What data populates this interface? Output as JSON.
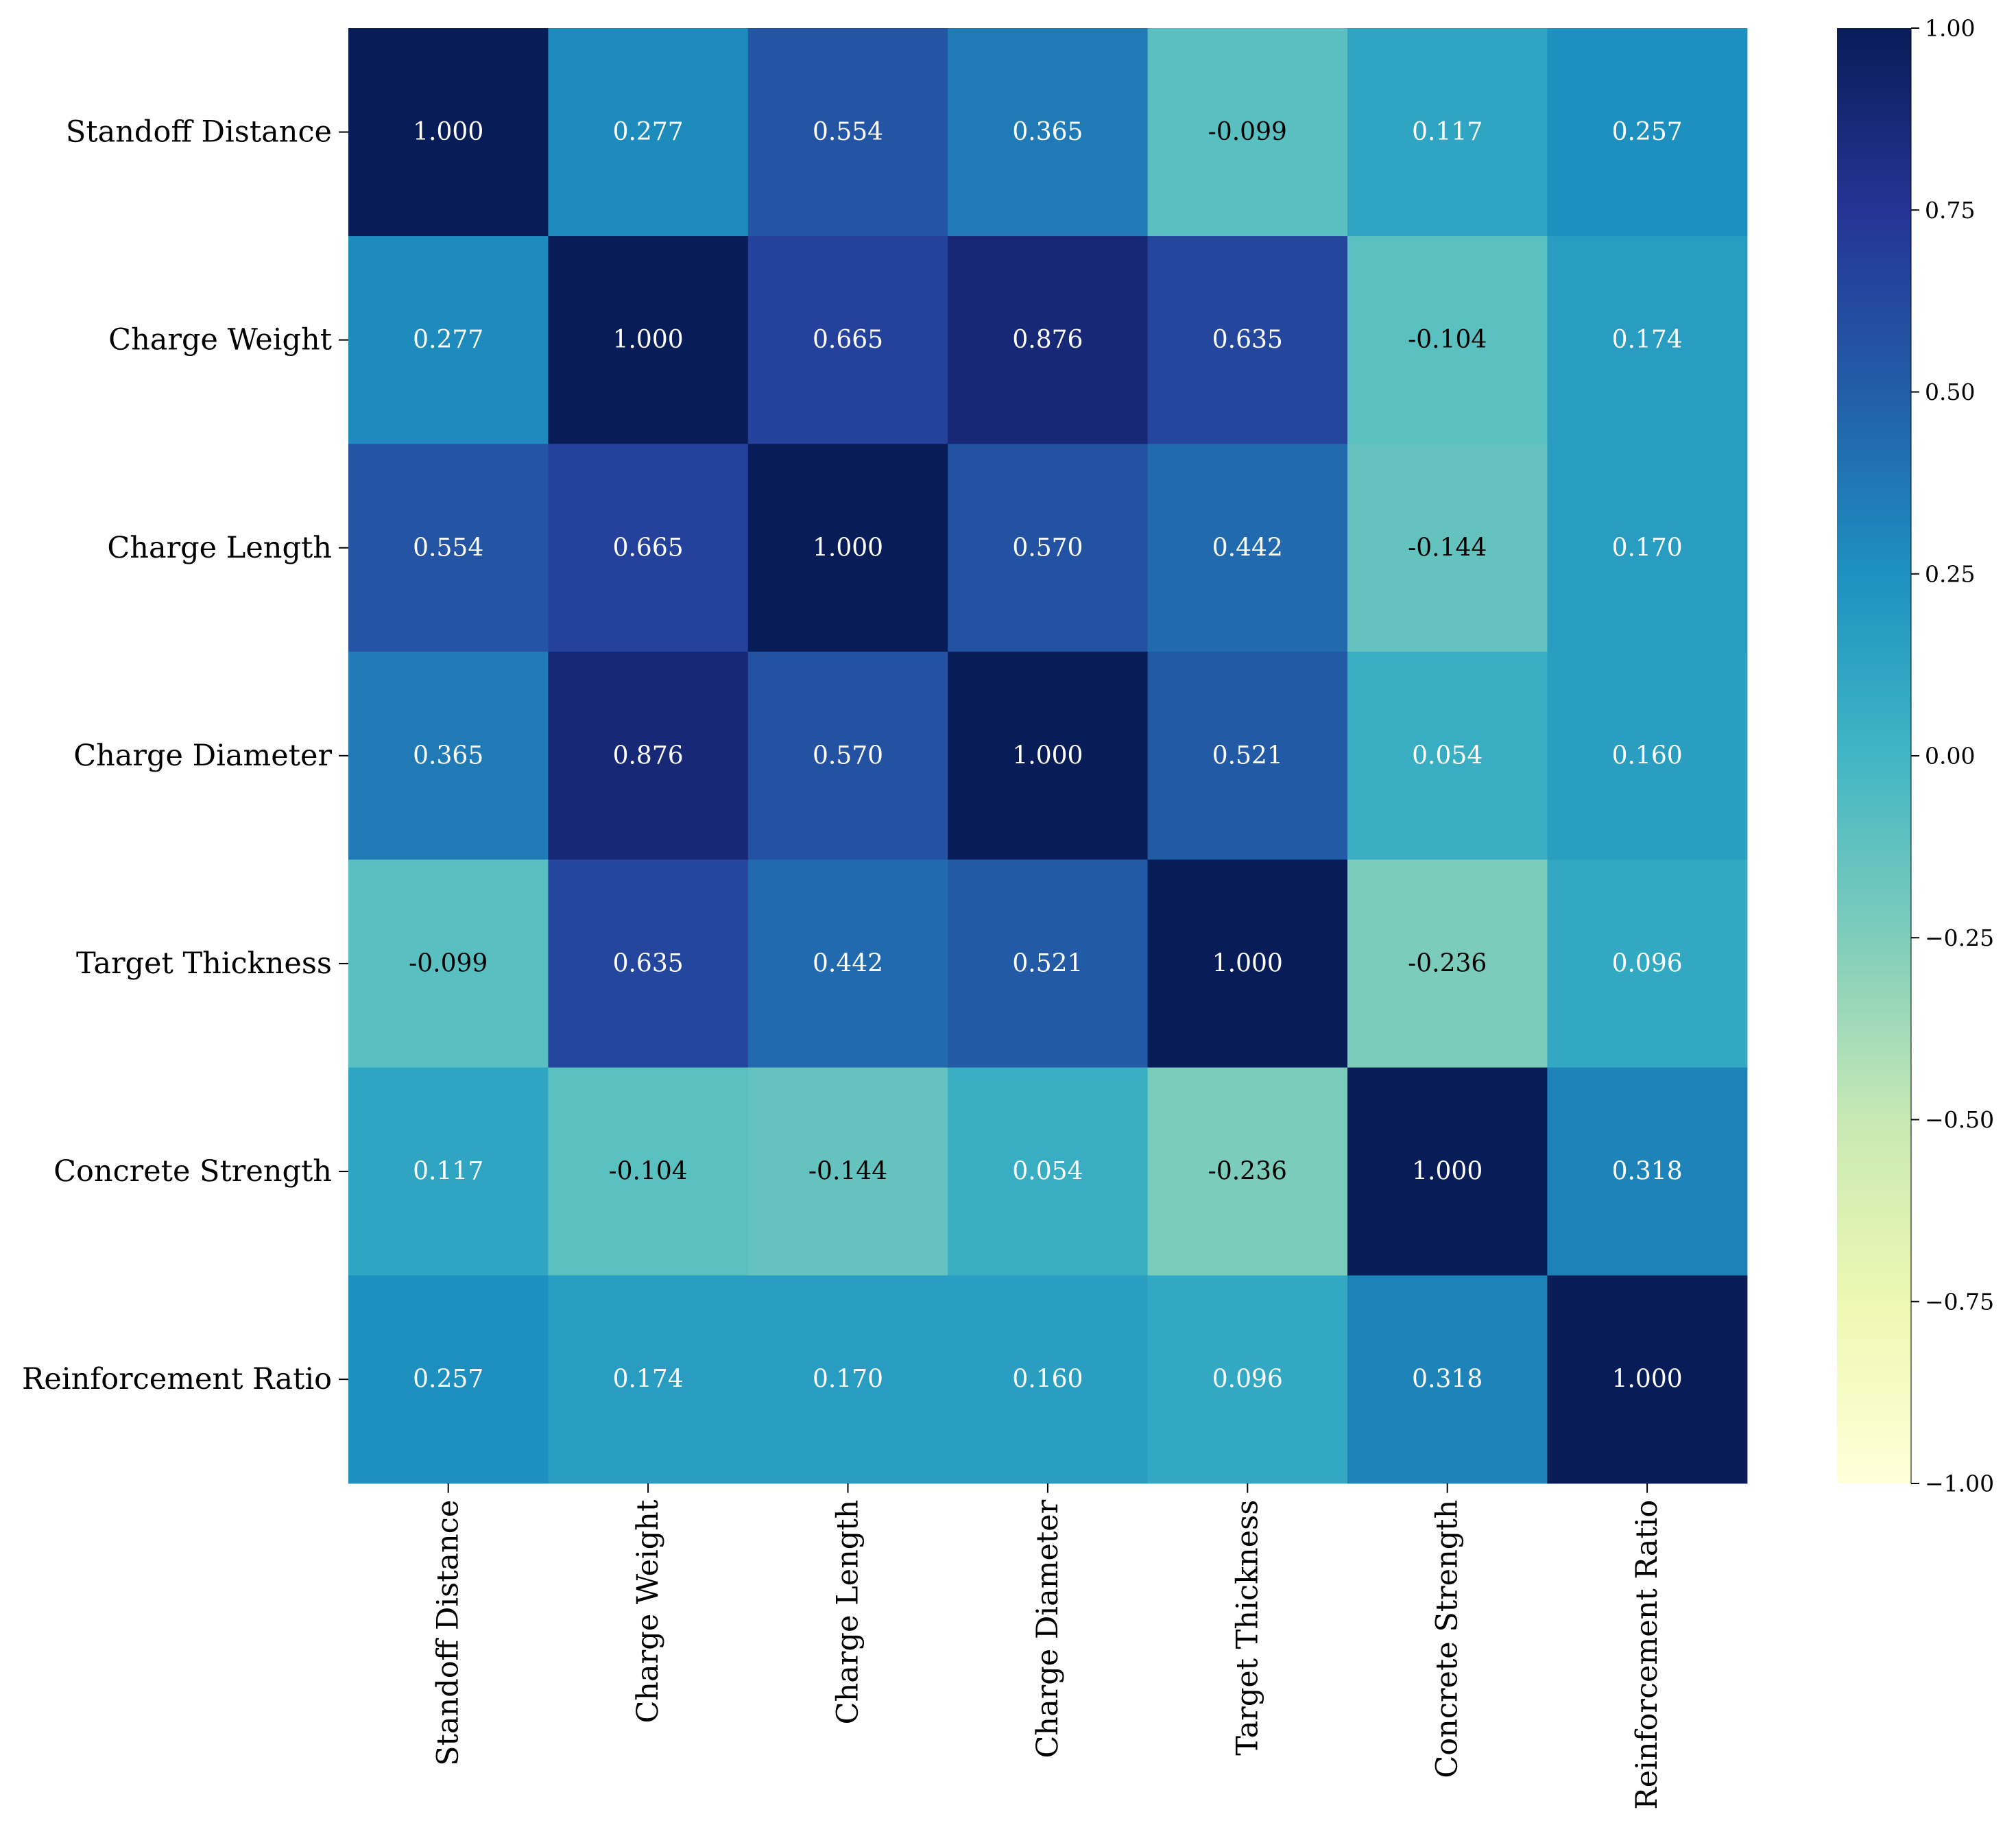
{
  "chart_data": {
    "type": "heatmap",
    "title": "",
    "row_labels": [
      "Standoff Distance",
      "Charge Weight",
      "Charge Length",
      "Charge Diameter",
      "Target Thickness",
      "Concrete Strength",
      "Reinforcement Ratio"
    ],
    "col_labels": [
      "Standoff Distance",
      "Charge Weight",
      "Charge Length",
      "Charge Diameter",
      "Target Thickness",
      "Concrete Strength",
      "Reinforcement Ratio"
    ],
    "values": [
      [
        1.0,
        0.277,
        0.554,
        0.365,
        -0.099,
        0.117,
        0.257
      ],
      [
        0.277,
        1.0,
        0.665,
        0.876,
        0.635,
        -0.104,
        0.174
      ],
      [
        0.554,
        0.665,
        1.0,
        0.57,
        0.442,
        -0.144,
        0.17
      ],
      [
        0.365,
        0.876,
        0.57,
        1.0,
        0.521,
        0.054,
        0.16
      ],
      [
        -0.099,
        0.635,
        0.442,
        0.521,
        1.0,
        -0.236,
        0.096
      ],
      [
        0.117,
        -0.104,
        -0.144,
        0.054,
        -0.236,
        1.0,
        0.318
      ],
      [
        0.257,
        0.174,
        0.17,
        0.16,
        0.096,
        0.318,
        1.0
      ]
    ],
    "value_format": "0.000",
    "colormap": "YlGnBu",
    "vmin": -1.0,
    "vmax": 1.0,
    "colorbar_ticks": [
      1.0,
      0.75,
      0.5,
      0.25,
      0.0,
      -0.25,
      -0.5,
      -0.75,
      -1.0
    ],
    "colorbar_tick_labels": [
      "1.00",
      "0.75",
      "0.50",
      "0.25",
      "0.00",
      "−0.25",
      "−0.50",
      "−0.75",
      "−1.00"
    ],
    "xlabel": "",
    "ylabel": ""
  },
  "colors": {
    "text_dark": "#000000",
    "text_light": "#ffffff",
    "colormap_stops": [
      "#ffffd9",
      "#edf8b1",
      "#c7e9b4",
      "#7fcdbb",
      "#41b6c4",
      "#1d91c0",
      "#225ea8",
      "#253494",
      "#081d58"
    ]
  }
}
